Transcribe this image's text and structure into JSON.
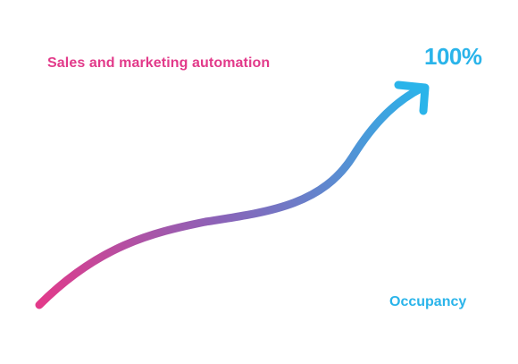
{
  "labels": {
    "left": "Sales and marketing automation",
    "top_right": "100%",
    "bottom_right": "Occupancy"
  },
  "colors": {
    "pink": "#e23a8a",
    "purple": "#8a63b8",
    "blue": "#2ab4ea"
  },
  "icons": {
    "arrow": "growth-arrow-icon"
  }
}
